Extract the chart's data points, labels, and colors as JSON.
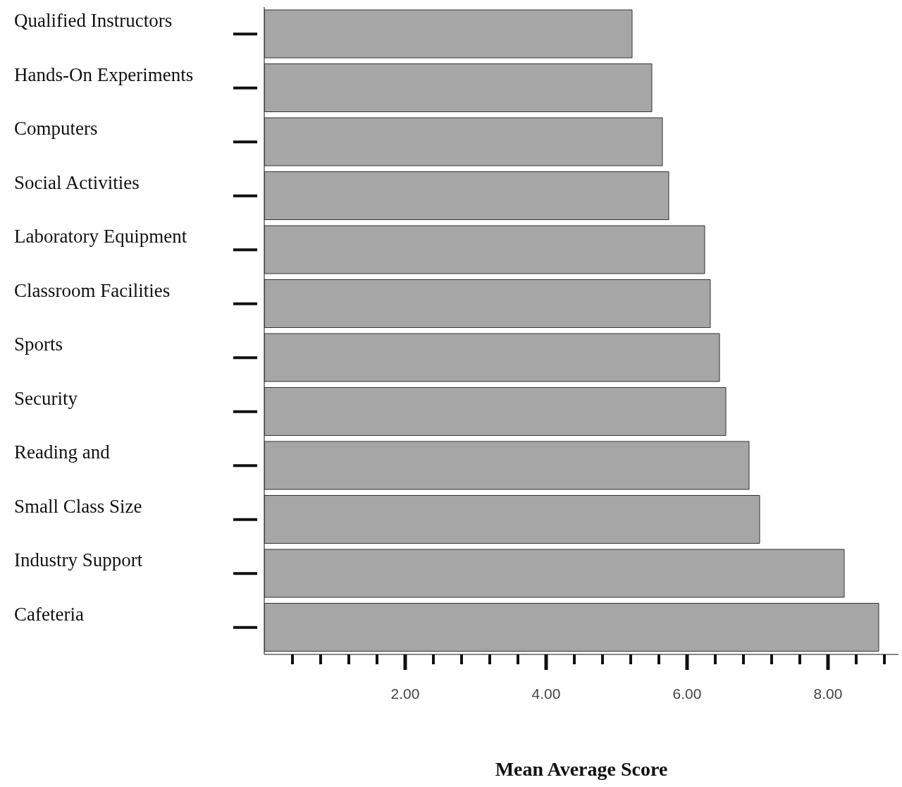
{
  "chart_data": {
    "type": "bar",
    "orientation": "horizontal",
    "xlabel": "Mean Average Score",
    "categories": [
      "Qualified Instructors",
      "Hands-On Experiments",
      "Computers",
      "Social Activities",
      "Laboratory Equipment",
      "Classroom Facilities",
      "Sports",
      "Security",
      "Reading and",
      "Small Class Size",
      "Industry Support",
      "Cafeteria"
    ],
    "values": [
      5.22,
      5.5,
      5.65,
      5.74,
      6.25,
      6.33,
      6.46,
      6.55,
      6.88,
      7.03,
      8.23,
      8.72
    ],
    "color": "#a6a6a6",
    "xlim": [
      0,
      9
    ],
    "xticks": [
      {
        "value": 0.4,
        "label": null
      },
      {
        "value": 0.8,
        "label": null
      },
      {
        "value": 1.2,
        "label": null
      },
      {
        "value": 1.6,
        "label": null
      },
      {
        "value": 2,
        "label": "2.00"
      },
      {
        "value": 2.4,
        "label": null
      },
      {
        "value": 2.8,
        "label": null
      },
      {
        "value": 3.2,
        "label": null
      },
      {
        "value": 3.6,
        "label": null
      },
      {
        "value": 4,
        "label": "4.00"
      },
      {
        "value": 4.4,
        "label": null
      },
      {
        "value": 4.8,
        "label": null
      },
      {
        "value": 5.2,
        "label": null
      },
      {
        "value": 5.6,
        "label": null
      },
      {
        "value": 6,
        "label": "6.00"
      },
      {
        "value": 6.4,
        "label": null
      },
      {
        "value": 6.8,
        "label": null
      },
      {
        "value": 7.2,
        "label": null
      },
      {
        "value": 7.6,
        "label": null
      },
      {
        "value": 8,
        "label": "8.00"
      },
      {
        "value": 8.4,
        "label": null
      },
      {
        "value": 8.8,
        "label": null
      }
    ],
    "grid": false,
    "legend": false
  }
}
